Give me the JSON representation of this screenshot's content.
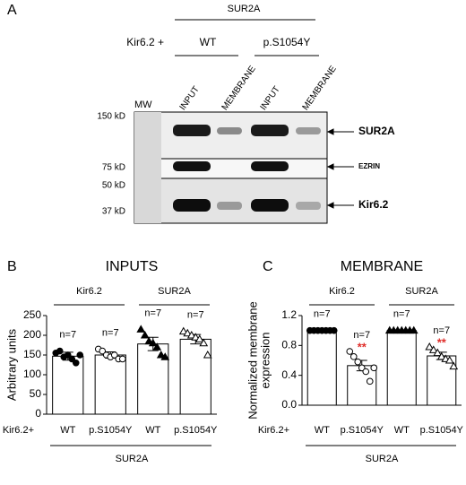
{
  "panel_a": {
    "panel_label": "A",
    "construct": "SUR2A",
    "row_label": "Kir6.2 +",
    "variants": [
      "WT",
      "p.S1054Y"
    ],
    "lanes": [
      "MW",
      "INPUT",
      "MEMBRANE",
      "INPUT",
      "MEMBRANE"
    ],
    "markers": [
      "150 kD",
      "75 kD",
      "50 kD",
      "37 kD"
    ],
    "bands": [
      "SUR2A",
      "EZRIN",
      "Kir6.2"
    ]
  },
  "chart_data": [
    {
      "type": "bar",
      "panel_label": "B",
      "title": "INPUTS",
      "ylabel": [
        "Arbitrary units"
      ],
      "group_labels": [
        "Kir6.2",
        "SUR2A"
      ],
      "row_label": "Kir6.2+",
      "bottom_label": "SUR2A",
      "categories": [
        "WT",
        "p.S1054Y",
        "WT",
        "p.S1054Y"
      ],
      "values": [
        147,
        150,
        178,
        190
      ],
      "errors": [
        10,
        8,
        17,
        12
      ],
      "n_labels": [
        "n=7",
        "n=7",
        "n=7",
        "n=7"
      ],
      "markers": [
        "circle-filled",
        "circle-open",
        "triangle-filled",
        "triangle-open"
      ],
      "points": [
        [
          155,
          160,
          145,
          150,
          140,
          130,
          150
        ],
        [
          165,
          160,
          150,
          145,
          150,
          140,
          140
        ],
        [
          215,
          200,
          185,
          180,
          170,
          150,
          145
        ],
        [
          210,
          205,
          200,
          195,
          190,
          180,
          150
        ]
      ],
      "significance": [
        null,
        null,
        null,
        null
      ],
      "ylim": [
        0,
        250
      ],
      "yticks": [
        0,
        50,
        100,
        150,
        200,
        250
      ],
      "color": "#ffffff"
    },
    {
      "type": "bar",
      "panel_label": "C",
      "title": "MEMBRANE",
      "ylabel": [
        "Normalized membrane",
        "expression"
      ],
      "group_labels": [
        "Kir6.2",
        "SUR2A"
      ],
      "row_label": "Kir6.2+",
      "bottom_label": "SUR2A",
      "categories": [
        "WT",
        "p.S1054Y",
        "WT",
        "p.S1054Y"
      ],
      "values": [
        1,
        0.53,
        1,
        0.66
      ],
      "errors": [
        0,
        0.07,
        0,
        0.05
      ],
      "n_labels": [
        "n=7",
        "n=7",
        "n=7",
        "n=7"
      ],
      "markers": [
        "circle-filled",
        "circle-open",
        "triangle-filled",
        "triangle-open"
      ],
      "points": [
        [
          1,
          1,
          1,
          1,
          1,
          1,
          1
        ],
        [
          0.72,
          0.65,
          0.58,
          0.5,
          0.45,
          0.32,
          0.5
        ],
        [
          1,
          1,
          1,
          1,
          1,
          1,
          1
        ],
        [
          0.78,
          0.74,
          0.7,
          0.65,
          0.62,
          0.6,
          0.52
        ]
      ],
      "significance": [
        null,
        "**",
        null,
        "**"
      ],
      "ylim": [
        0,
        1.2
      ],
      "yticks": [
        {
          "value": 0,
          "label": "0.0"
        },
        0.4,
        0.8,
        1.2
      ],
      "color": "#ffffff"
    }
  ]
}
